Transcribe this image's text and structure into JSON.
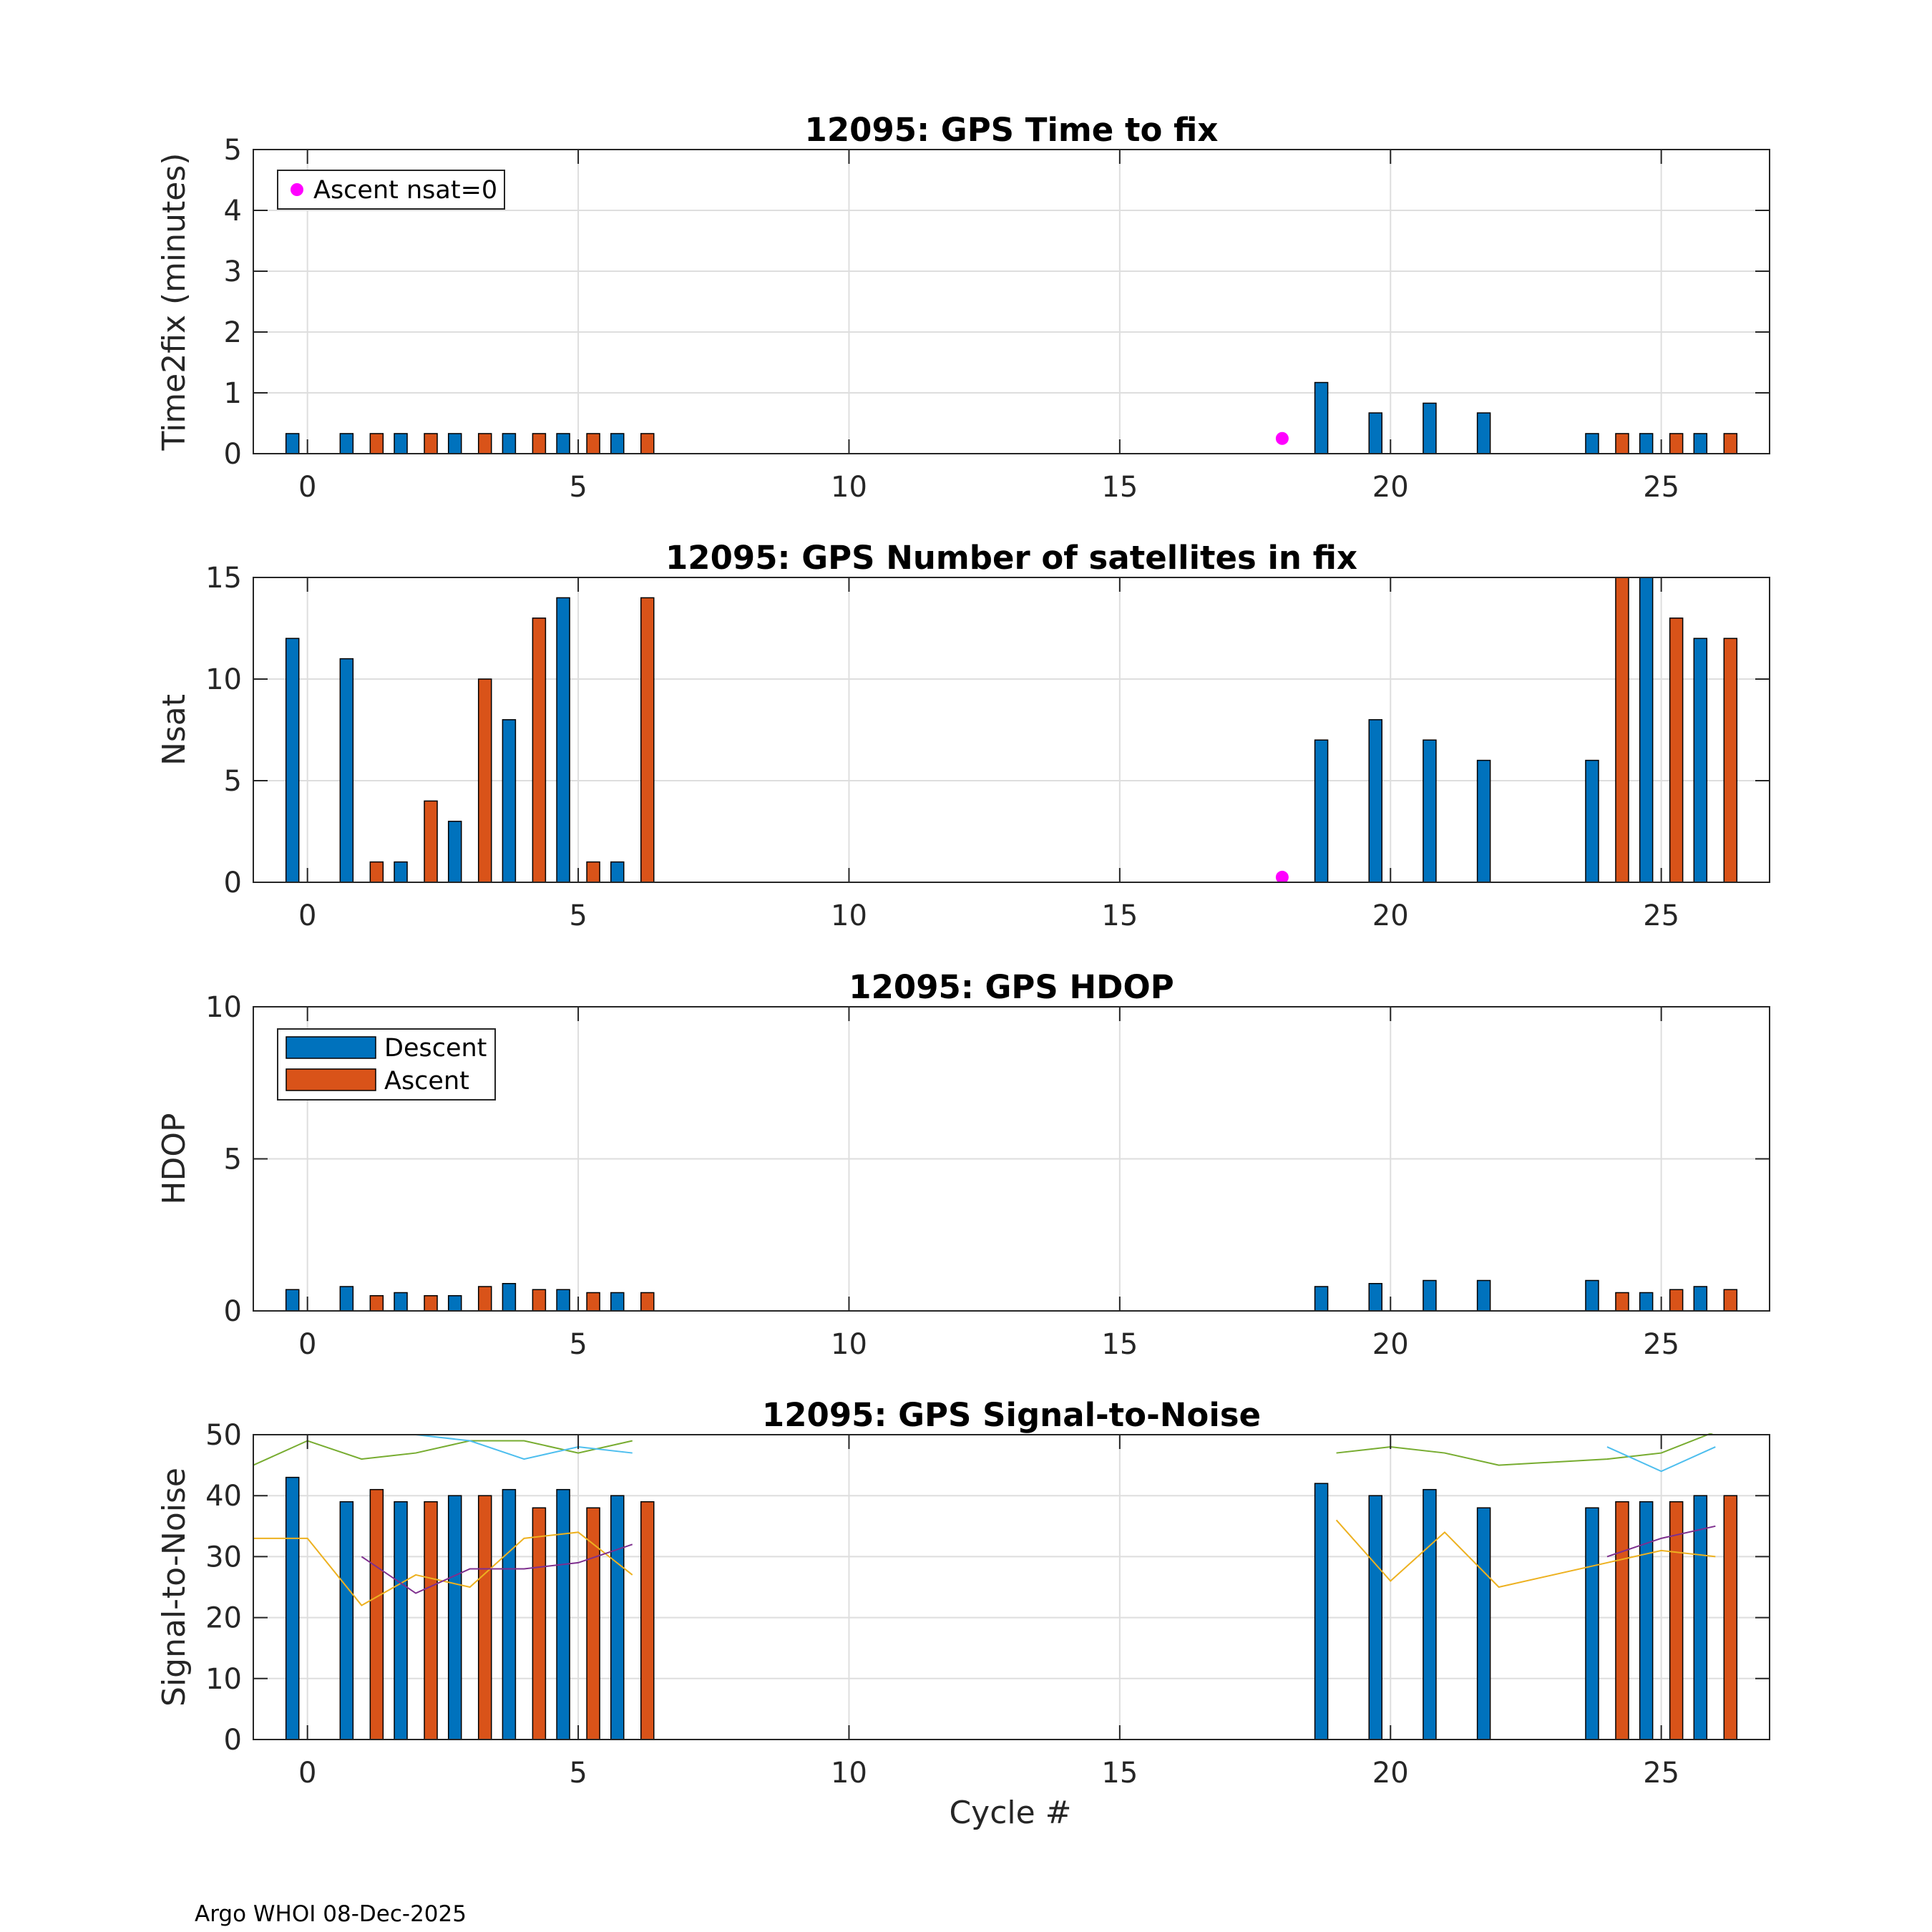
{
  "footer": "Argo WHOI 08-Dec-2025",
  "xlabel": "Cycle #",
  "colors": {
    "descent": "#0072BD",
    "ascent": "#D95319",
    "marker": "#FF00FF"
  },
  "legend_time": {
    "label": "Ascent nsat=0"
  },
  "legend_hdop": {
    "descent": "Descent",
    "ascent": "Ascent"
  },
  "chart_data": [
    {
      "id": "time",
      "type": "bar",
      "title": "12095: GPS Time to fix",
      "ylabel": "Time2fix (minutes)",
      "xlim": [
        -1,
        27
      ],
      "ylim": [
        0,
        5
      ],
      "xticks": [
        0,
        5,
        10,
        15,
        20,
        25
      ],
      "yticks": [
        0,
        1,
        2,
        3,
        4,
        5
      ],
      "grid": true,
      "legend_position": "top-left",
      "series": [
        {
          "name": "Descent",
          "points": [
            [
              0,
              0.33
            ],
            [
              1,
              0.33
            ],
            [
              2,
              0.33
            ],
            [
              3,
              0.33
            ],
            [
              4,
              0.33
            ],
            [
              5,
              0.33
            ],
            [
              6,
              0.33
            ],
            [
              19,
              1.17
            ],
            [
              20,
              0.67
            ],
            [
              21,
              0.83
            ],
            [
              22,
              0.67
            ],
            [
              24,
              0.33
            ],
            [
              25,
              0.33
            ],
            [
              26,
              0.33
            ]
          ]
        },
        {
          "name": "Ascent",
          "points": [
            [
              1,
              0.33
            ],
            [
              2,
              0.33
            ],
            [
              3,
              0.33
            ],
            [
              4,
              0.33
            ],
            [
              5,
              0.33
            ],
            [
              6,
              0.33
            ],
            [
              24,
              0.33
            ],
            [
              25,
              0.33
            ],
            [
              26,
              0.33
            ]
          ]
        }
      ],
      "markers": [
        {
          "name": "Ascent nsat=0",
          "x": 18,
          "y": 0.25
        }
      ]
    },
    {
      "id": "nsat",
      "type": "bar",
      "title": "12095: GPS Number of satellites in fix",
      "ylabel": "Nsat",
      "xlim": [
        -1,
        27
      ],
      "ylim": [
        0,
        15
      ],
      "xticks": [
        0,
        5,
        10,
        15,
        20,
        25
      ],
      "yticks": [
        0,
        5,
        10,
        15
      ],
      "grid": true,
      "series": [
        {
          "name": "Descent",
          "points": [
            [
              0,
              12
            ],
            [
              1,
              11
            ],
            [
              2,
              1
            ],
            [
              3,
              3
            ],
            [
              4,
              8
            ],
            [
              5,
              14
            ],
            [
              6,
              1
            ],
            [
              19,
              7
            ],
            [
              20,
              8
            ],
            [
              21,
              7
            ],
            [
              22,
              6
            ],
            [
              24,
              6
            ],
            [
              25,
              15
            ],
            [
              26,
              12
            ]
          ]
        },
        {
          "name": "Ascent",
          "points": [
            [
              1,
              1
            ],
            [
              2,
              4
            ],
            [
              3,
              10
            ],
            [
              4,
              13
            ],
            [
              5,
              1
            ],
            [
              6,
              14
            ],
            [
              24,
              15
            ],
            [
              25,
              13
            ],
            [
              26,
              12
            ]
          ]
        }
      ],
      "markers": [
        {
          "name": "Ascent nsat=0",
          "x": 18,
          "y": 0.25
        }
      ]
    },
    {
      "id": "hdop",
      "type": "bar",
      "title": "12095: GPS HDOP",
      "ylabel": "HDOP",
      "xlim": [
        -1,
        27
      ],
      "ylim": [
        0,
        10
      ],
      "xticks": [
        0,
        5,
        10,
        15,
        20,
        25
      ],
      "yticks": [
        0,
        5,
        10
      ],
      "grid": true,
      "legend_position": "top-left",
      "series": [
        {
          "name": "Descent",
          "points": [
            [
              0,
              0.7
            ],
            [
              1,
              0.8
            ],
            [
              2,
              0.6
            ],
            [
              3,
              0.5
            ],
            [
              4,
              0.9
            ],
            [
              5,
              0.7
            ],
            [
              6,
              0.6
            ],
            [
              19,
              0.8
            ],
            [
              20,
              0.9
            ],
            [
              21,
              1.0
            ],
            [
              22,
              1.0
            ],
            [
              24,
              1.0
            ],
            [
              25,
              0.6
            ],
            [
              26,
              0.8
            ]
          ]
        },
        {
          "name": "Ascent",
          "points": [
            [
              1,
              0.5
            ],
            [
              2,
              0.5
            ],
            [
              3,
              0.8
            ],
            [
              4,
              0.7
            ],
            [
              5,
              0.6
            ],
            [
              6,
              0.6
            ],
            [
              24,
              0.6
            ],
            [
              25,
              0.7
            ],
            [
              26,
              0.7
            ]
          ]
        }
      ],
      "markers": []
    },
    {
      "id": "snr",
      "type": "bar",
      "title": "12095: GPS Signal-to-Noise",
      "ylabel": "Signal-to-Noise",
      "xlim": [
        -1,
        27
      ],
      "ylim": [
        0,
        50
      ],
      "xticks": [
        0,
        5,
        10,
        15,
        20,
        25
      ],
      "yticks": [
        0,
        10,
        20,
        30,
        40,
        50
      ],
      "grid": true,
      "series": [
        {
          "name": "Descent",
          "points": [
            [
              0,
              43
            ],
            [
              1,
              39
            ],
            [
              2,
              39
            ],
            [
              3,
              40
            ],
            [
              4,
              41
            ],
            [
              5,
              41
            ],
            [
              6,
              40
            ],
            [
              19,
              42
            ],
            [
              20,
              40
            ],
            [
              21,
              41
            ],
            [
              22,
              38
            ],
            [
              24,
              38
            ],
            [
              25,
              39
            ],
            [
              26,
              40
            ]
          ]
        },
        {
          "name": "Ascent",
          "points": [
            [
              1,
              41
            ],
            [
              2,
              39
            ],
            [
              3,
              40
            ],
            [
              4,
              38
            ],
            [
              5,
              38
            ],
            [
              6,
              39
            ],
            [
              24,
              39
            ],
            [
              25,
              39
            ],
            [
              26,
              40
            ]
          ]
        }
      ],
      "lines": [
        {
          "color": "#77AC30",
          "segments": [
            [
              [
                -1,
                45
              ],
              [
                0,
                49
              ],
              [
                1,
                46
              ],
              [
                2,
                47
              ],
              [
                3,
                49
              ],
              [
                4,
                49
              ],
              [
                5,
                47
              ],
              [
                6,
                49
              ]
            ],
            [
              [
                19,
                47
              ],
              [
                20,
                48
              ],
              [
                21,
                47
              ],
              [
                22,
                45
              ],
              [
                24,
                46
              ],
              [
                25,
                47
              ],
              [
                26,
                50.5
              ]
            ]
          ]
        },
        {
          "color": "#4DBEEE",
          "segments": [
            [
              [
                2,
                50
              ],
              [
                3,
                49
              ],
              [
                4,
                46
              ],
              [
                5,
                48
              ],
              [
                6,
                47
              ]
            ],
            [
              [
                24,
                48
              ],
              [
                25,
                44
              ],
              [
                26,
                48
              ]
            ]
          ]
        },
        {
          "color": "#EDB120",
          "segments": [
            [
              [
                -1,
                33
              ],
              [
                0,
                33
              ],
              [
                1,
                22
              ],
              [
                2,
                27
              ],
              [
                3,
                25
              ],
              [
                4,
                33
              ],
              [
                5,
                34
              ],
              [
                6,
                27
              ]
            ],
            [
              [
                19,
                36
              ],
              [
                20,
                26
              ],
              [
                21,
                34
              ],
              [
                22,
                25
              ],
              [
                24,
                29
              ],
              [
                25,
                31
              ],
              [
                26,
                30
              ]
            ]
          ]
        },
        {
          "color": "#7E2F8E",
          "segments": [
            [
              [
                1,
                30
              ],
              [
                2,
                24
              ],
              [
                3,
                28
              ],
              [
                4,
                28
              ],
              [
                5,
                29
              ],
              [
                6,
                32
              ]
            ],
            [
              [
                24,
                30
              ],
              [
                25,
                33
              ],
              [
                26,
                35
              ]
            ]
          ]
        }
      ],
      "markers": []
    }
  ]
}
